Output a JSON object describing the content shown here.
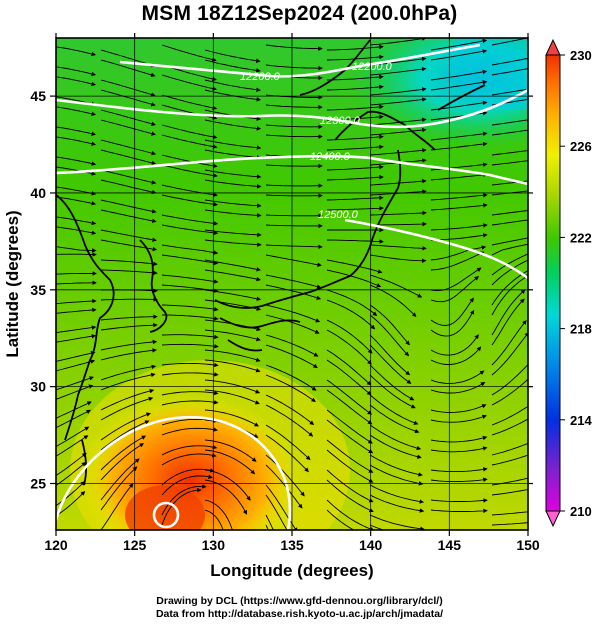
{
  "title": "MSM 18Z12Sep2024 (200.0hPa)",
  "map": {
    "xlabel": "Longitude (degrees)",
    "ylabel": "Latitude  (degrees)",
    "lon_range": [
      120,
      150
    ],
    "lat_range": [
      22.6,
      48
    ],
    "lon_ticks": [
      "120",
      "125",
      "130",
      "135",
      "140",
      "145",
      "150"
    ],
    "lat_ticks": [
      "25",
      "30",
      "35",
      "40",
      "45"
    ],
    "grid": true
  },
  "colorbar": {
    "range": [
      210,
      230
    ],
    "ticks": [
      "210",
      "214",
      "218",
      "222",
      "226",
      "230"
    ],
    "colors": [
      "#e000e0",
      "#6020d0",
      "#0030e0",
      "#0090e8",
      "#00d8d8",
      "#00d060",
      "#40c800",
      "#b0d800",
      "#f0f000",
      "#ffb000",
      "#ff7000",
      "#f03000"
    ]
  },
  "contours": [
    {
      "label": "12200.0"
    },
    {
      "label": "12300.0"
    },
    {
      "label": "12400.0"
    },
    {
      "label": "12500.0"
    },
    {
      "label": "12200.0"
    }
  ],
  "credits": {
    "line1": "Drawing by DCL (https://www.gfd-dennou.org/library/dcl/)",
    "line2": "Data from http://database.rish.kyoto-u.ac.jp/arch/jmadata/"
  }
}
